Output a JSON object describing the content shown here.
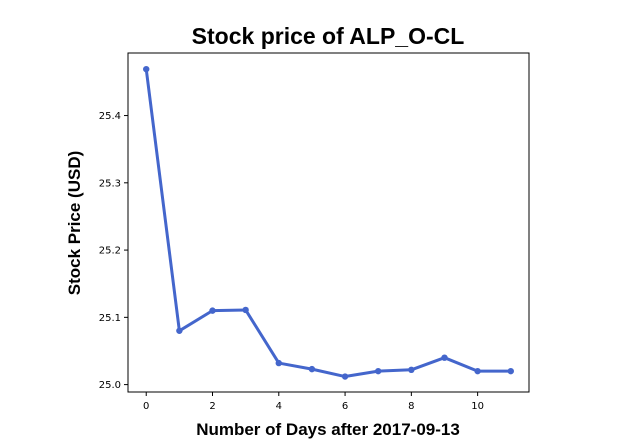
{
  "chart_data": {
    "type": "line",
    "title": "Stock price of ALP_O-CL",
    "xlabel": "Number of Days after 2017-09-13",
    "ylabel": "Stock Price (USD)",
    "xlim": [
      -0.55,
      11.55
    ],
    "ylim": [
      24.989,
      25.493
    ],
    "x_ticks": [
      0,
      2,
      4,
      6,
      8,
      10
    ],
    "y_ticks": [
      "25.0",
      "25.1",
      "25.2",
      "25.3",
      "25.4"
    ],
    "grid": false,
    "series": [
      {
        "color": "#4466cc",
        "x": [
          0,
          1,
          2,
          3,
          4,
          5,
          6,
          7,
          8,
          9,
          10,
          11
        ],
        "y": [
          25.469,
          25.08,
          25.11,
          25.111,
          25.032,
          25.023,
          25.012,
          25.02,
          25.022,
          25.04,
          25.02,
          25.02
        ]
      }
    ]
  }
}
